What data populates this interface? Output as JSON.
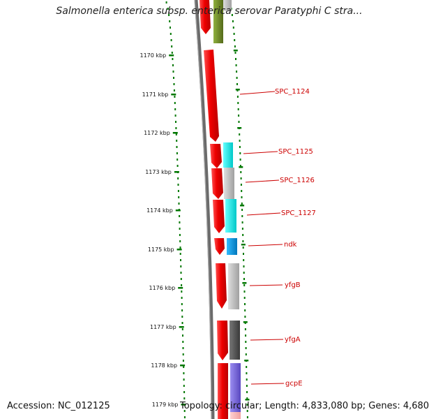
{
  "title": "Salmonella enterica subsp. enterica serovar Paratyphi C stra...",
  "footer": {
    "accession": "Accession: NC_012125",
    "topology": "Topology: circular; Length: 4,833,080 bp; Genes: 4,680"
  },
  "ruler": {
    "unit": "kbp",
    "ticks": [
      "1170 kbp",
      "1171 kbp",
      "1172 kbp",
      "1173 kbp",
      "1174 kbp",
      "1175 kbp",
      "1176 kbp",
      "1177 kbp",
      "1178 kbp",
      "1179 kbp"
    ]
  },
  "genes": [
    {
      "label": "SPC_1124",
      "color": "#ee0000"
    },
    {
      "label": "SPC_1125",
      "color": "#ee0000"
    },
    {
      "label": "SPC_1126",
      "color": "#ee0000"
    },
    {
      "label": "SPC_1127",
      "color": "#ee0000"
    },
    {
      "label": "ndk",
      "color": "#ee0000"
    },
    {
      "label": "yfgB",
      "color": "#ee0000"
    },
    {
      "label": "yfgA",
      "color": "#ee0000"
    },
    {
      "label": "gcpE",
      "color": "#ee0000"
    }
  ],
  "colors": {
    "forward_strand": "#ee0000",
    "cog_olive": "#6b8e23",
    "cog_cyan": "#00e5e5",
    "cog_gray": "#b8b8b8",
    "cog_blue": "#0099dd",
    "cog_darkgray": "#555555",
    "cog_purple": "#7a6ad8",
    "backbone": "#666666",
    "ruler": "#007700",
    "label": "#cc0000"
  }
}
